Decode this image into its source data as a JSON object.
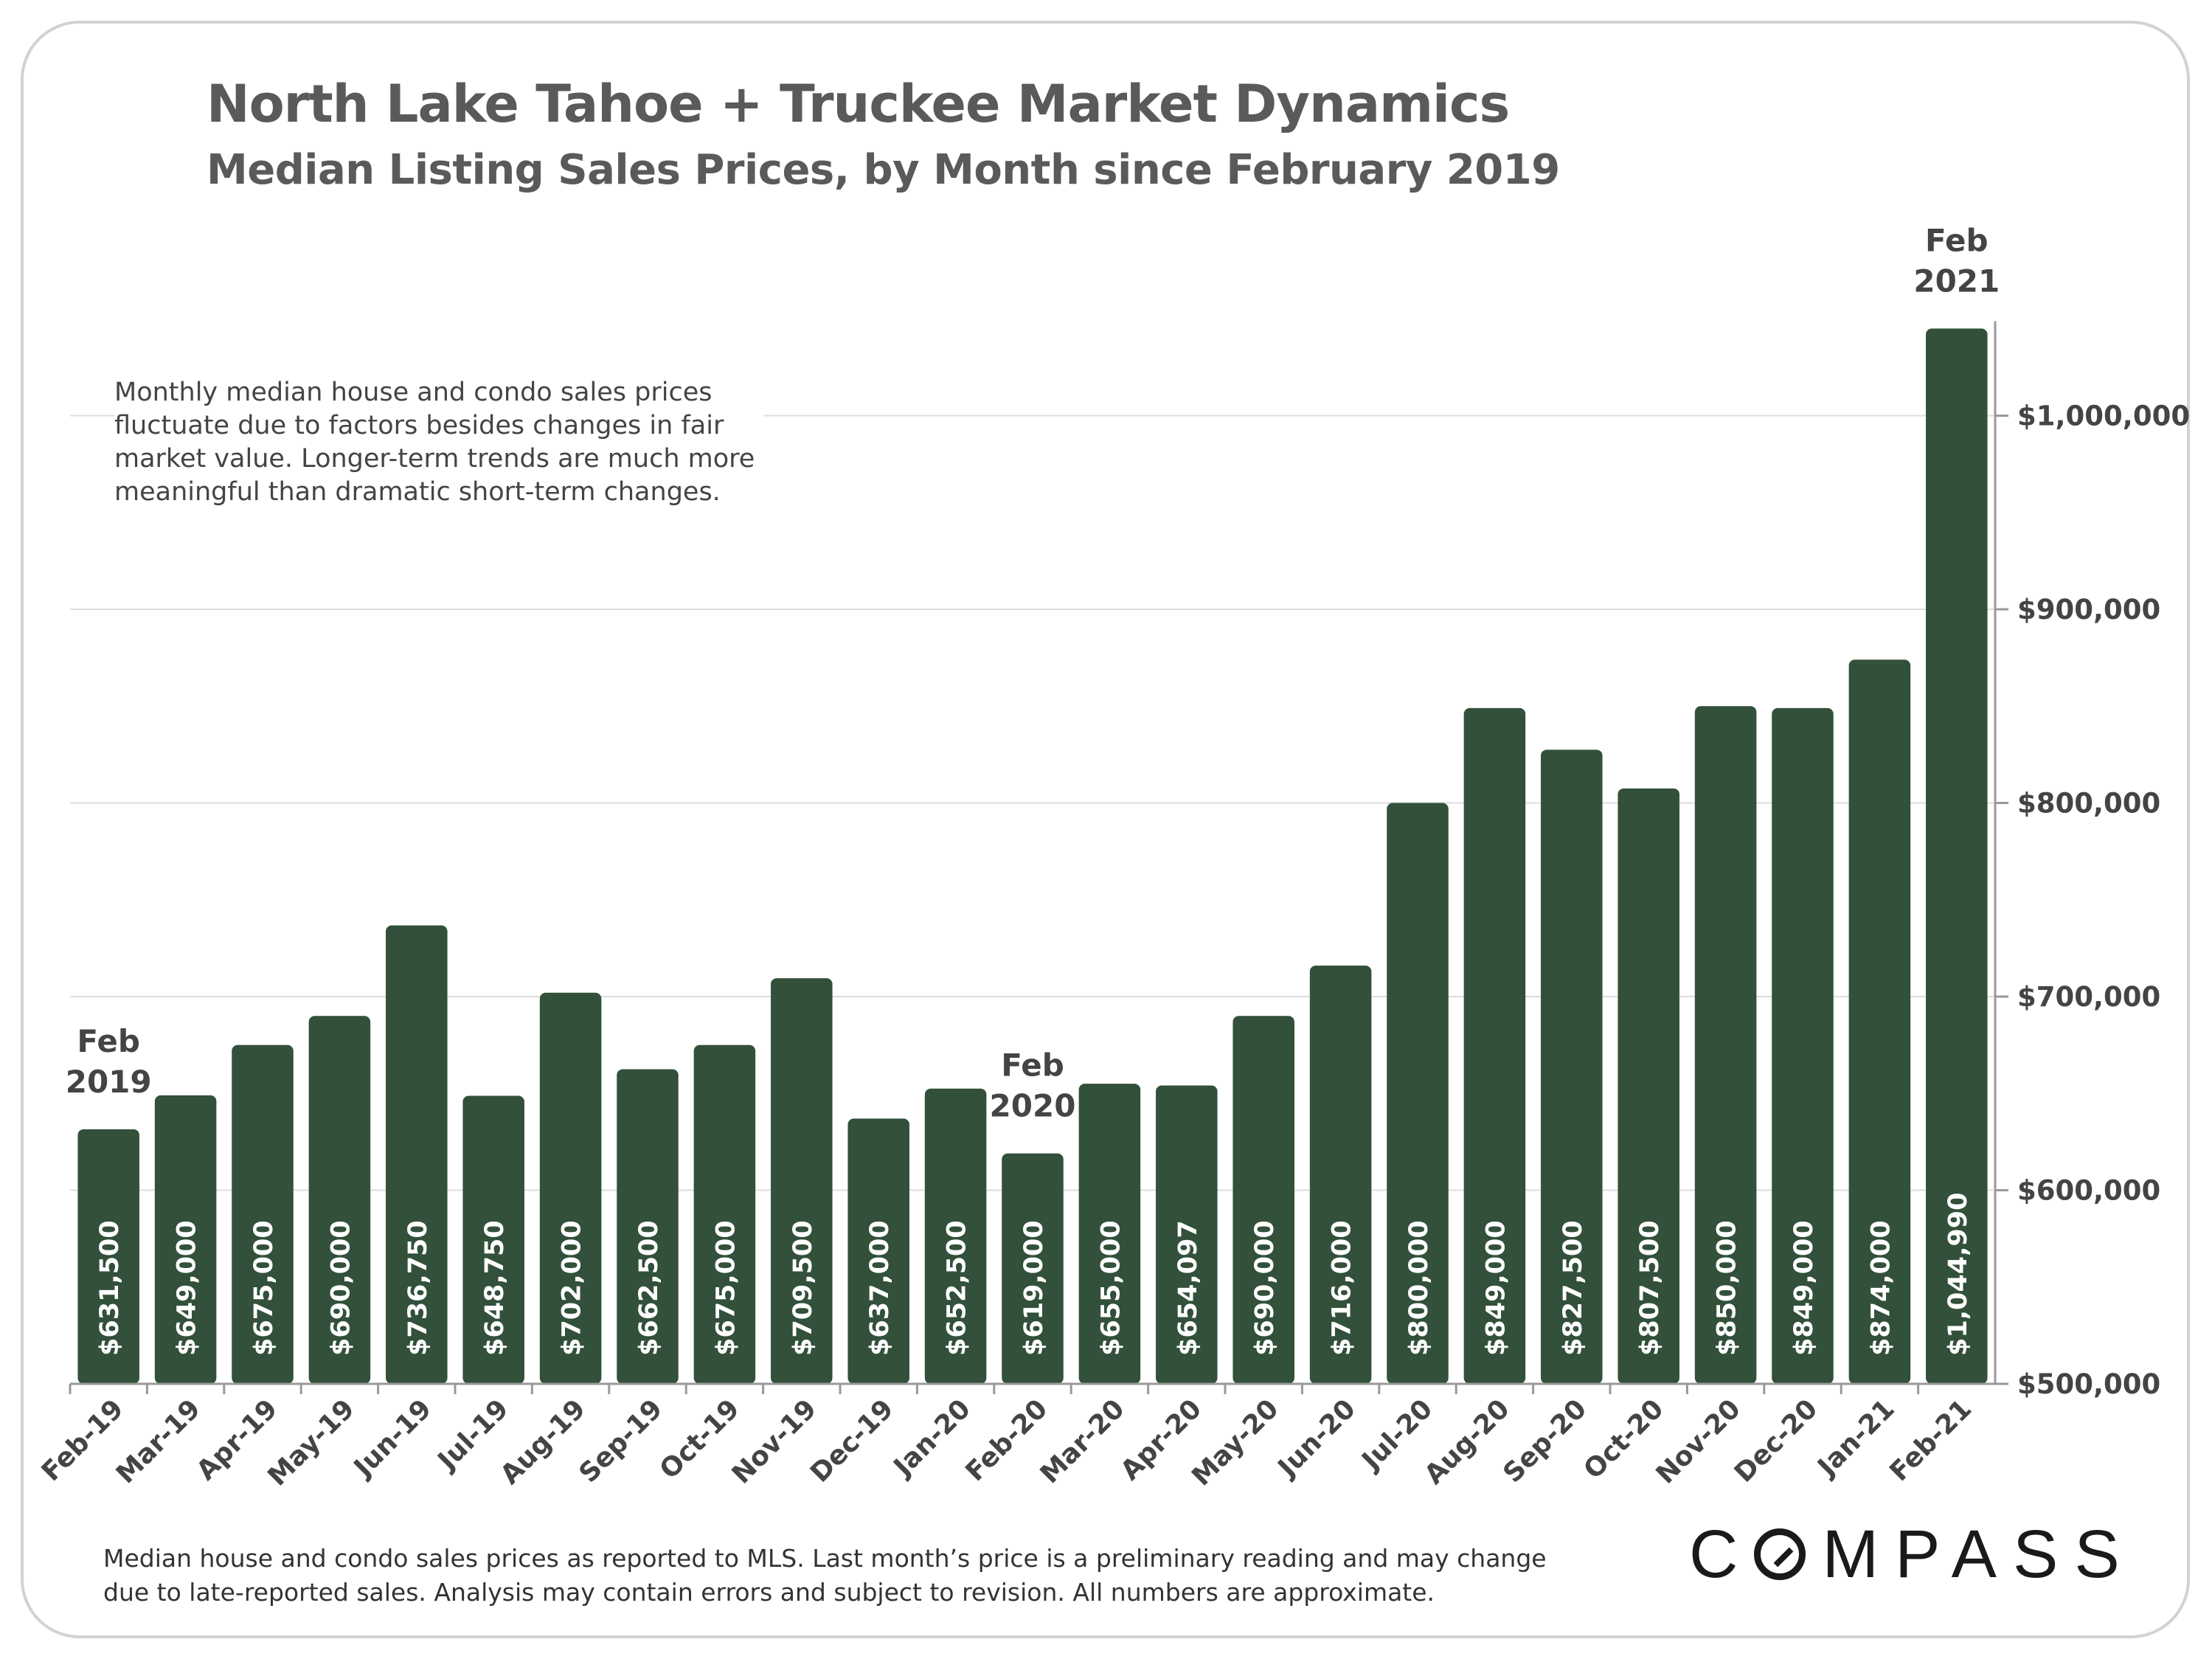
{
  "title": "North Lake Tahoe + Truckee Market Dynamics",
  "subtitle": "Median Listing Sales Prices, by Month since February 2019",
  "note": "Monthly median house and condo sales prices fluctuate due to factors besides changes in fair market value. Longer-term trends are much more meaningful than dramatic short-term changes.",
  "footnote_line1": "Median house and condo sales prices as reported to MLS. Last month’s price is a preliminary reading and may change",
  "footnote_line2": "due to late-reported sales. Analysis may contain errors and subject to revision. All numbers are approximate.",
  "brand": {
    "prefix": "C",
    "suffix": "MPASS",
    "full": "COMPASS"
  },
  "colors": {
    "bar": "#32503a",
    "gridline": "#dcdcdc",
    "axis": "#999999",
    "text": "#444444",
    "bar_label": "#ffffff"
  },
  "chart_data": {
    "type": "bar",
    "title": "North Lake Tahoe + Truckee Market Dynamics",
    "subtitle": "Median Listing Sales Prices, by Month since February 2019",
    "categories": [
      "Feb-19",
      "Mar-19",
      "Apr-19",
      "May-19",
      "Jun-19",
      "Jul-19",
      "Aug-19",
      "Sep-19",
      "Oct-19",
      "Nov-19",
      "Dec-19",
      "Jan-20",
      "Feb-20",
      "Mar-20",
      "Apr-20",
      "May-20",
      "Jun-20",
      "Jul-20",
      "Aug-20",
      "Sep-20",
      "Oct-20",
      "Nov-20",
      "Dec-20",
      "Jan-21",
      "Feb-21"
    ],
    "values": [
      631500,
      649000,
      675000,
      690000,
      736750,
      648750,
      702000,
      662500,
      675000,
      709500,
      637000,
      652500,
      619000,
      655000,
      654097,
      690000,
      716000,
      800000,
      849000,
      827500,
      807500,
      850000,
      849000,
      874000,
      1044990
    ],
    "value_labels": [
      "$631,500",
      "$649,000",
      "$675,000",
      "$690,000",
      "$736,750",
      "$648,750",
      "$702,000",
      "$662,500",
      "$675,000",
      "$709,500",
      "$637,000",
      "$652,500",
      "$619,000",
      "$655,000",
      "$654,097",
      "$690,000",
      "$716,000",
      "$800,000",
      "$849,000",
      "$827,500",
      "$807,500",
      "$850,000",
      "$849,000",
      "$874,000",
      "$1,044,990"
    ],
    "ylim": [
      500000,
      1000000
    ],
    "yticks": [
      500000,
      600000,
      700000,
      800000,
      900000,
      1000000
    ],
    "ytick_labels": [
      "$500,000",
      "$600,000",
      "$700,000",
      "$800,000",
      "$900,000",
      "$1,000,000"
    ],
    "y_axis_side": "right",
    "grid": true,
    "annotations": [
      {
        "category_index": 0,
        "lines": [
          "Feb",
          "2019"
        ]
      },
      {
        "category_index": 12,
        "lines": [
          "Feb",
          "2020"
        ]
      },
      {
        "category_index": 24,
        "lines": [
          "Feb",
          "2021"
        ]
      }
    ]
  }
}
